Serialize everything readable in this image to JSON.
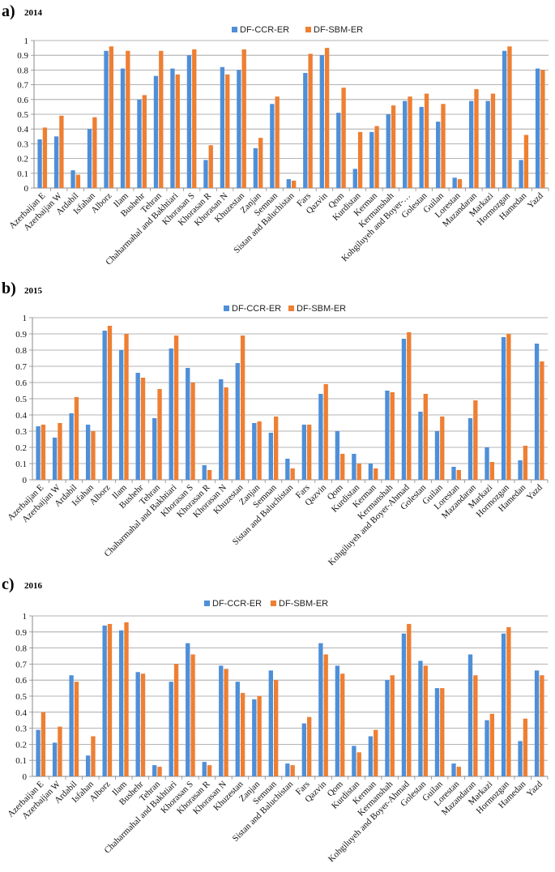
{
  "colors": {
    "ccr": "#4f8fd8",
    "sbm": "#ee7f33",
    "grid": "#9a9a9a",
    "axis": "#8a8a8a"
  },
  "chart_data": [
    {
      "type": "bar",
      "panel_letter": "a)",
      "title": "2014",
      "ylim": [
        0,
        1
      ],
      "yticks": [
        "0",
        "0.1",
        "0.2",
        "0.3",
        "0.4",
        "0.5",
        "0.6",
        "0.7",
        "0.8",
        "0.9",
        "1"
      ],
      "categories": [
        "Azerbaijan E",
        "Azerbaijan W",
        "Ardabil",
        "Isfahan",
        "Alborz",
        "Ilam",
        "Bushehr",
        "Tehran",
        "Chaharmahal and Bakhtiari",
        "Khorasan S",
        "Khorasan R",
        "Khorasan N",
        "Khuzestan",
        "Zanjan",
        "Semnan",
        "Sistan and Baluchistan",
        "Fars",
        "Qazvin",
        "Qom",
        "Kurdistan",
        "Kerman",
        "Kermanshah",
        "Kohgiluyeh and Boyer-…",
        "Golestan",
        "Guilan",
        "Lorestan",
        "Mazandaran",
        "Markazi",
        "Hormozgan",
        "Hamedan",
        "Yazd"
      ],
      "series": [
        {
          "name": "DF-CCR-ER",
          "values": [
            0.33,
            0.35,
            0.12,
            0.4,
            0.93,
            0.81,
            0.6,
            0.76,
            0.81,
            0.9,
            0.19,
            0.82,
            0.8,
            0.27,
            0.57,
            0.06,
            0.78,
            0.9,
            0.51,
            0.13,
            0.38,
            0.5,
            0.59,
            0.55,
            0.45,
            0.07,
            0.59,
            0.59,
            0.93,
            0.19,
            0.81
          ]
        },
        {
          "name": "DF-SBM-ER",
          "values": [
            0.41,
            0.49,
            0.09,
            0.48,
            0.96,
            0.93,
            0.63,
            0.93,
            0.77,
            0.94,
            0.29,
            0.77,
            0.94,
            0.34,
            0.62,
            0.05,
            0.91,
            0.95,
            0.68,
            0.38,
            0.42,
            0.56,
            0.62,
            0.64,
            0.57,
            0.06,
            0.67,
            0.64,
            0.96,
            0.36,
            0.8
          ]
        }
      ]
    },
    {
      "type": "bar",
      "panel_letter": "b)",
      "title": "2015",
      "ylim": [
        0,
        1
      ],
      "yticks": [
        "0",
        "0.1",
        "0.2",
        "0.3",
        "0.4",
        "0.5",
        "0.6",
        "0.7",
        "0.8",
        "0.9",
        "1"
      ],
      "categories": [
        "Azerbaijan E",
        "Azerbaijan W",
        "Ardabil",
        "Isfahan",
        "Alborz",
        "Ilam",
        "Bushehr",
        "Tehran",
        "Chaharmahal and Bakhtiari",
        "Khorasan S",
        "Khorasan R",
        "Khorasan N",
        "Khuzestan",
        "Zanjan",
        "Semnan",
        "Sistan and Baluchistan",
        "Fars",
        "Qazvin",
        "Qom",
        "Kurdistan",
        "Kerman",
        "Kermanshah",
        "Kohgiluyeh and Boyer-Ahmad",
        "Golestan",
        "Guilan",
        "Lorestan",
        "Mazandaran",
        "Markazi",
        "Hormozgan",
        "Hamedan",
        "Yazd"
      ],
      "series": [
        {
          "name": "DF-CCR-ER",
          "values": [
            0.33,
            0.26,
            0.41,
            0.34,
            0.92,
            0.8,
            0.66,
            0.38,
            0.81,
            0.69,
            0.09,
            0.62,
            0.72,
            0.35,
            0.29,
            0.13,
            0.34,
            0.53,
            0.3,
            0.16,
            0.1,
            0.55,
            0.87,
            0.42,
            0.3,
            0.08,
            0.38,
            0.2,
            0.88,
            0.12,
            0.84
          ]
        },
        {
          "name": "DF-SBM-ER",
          "values": [
            0.34,
            0.35,
            0.51,
            0.3,
            0.95,
            0.9,
            0.63,
            0.56,
            0.89,
            0.6,
            0.06,
            0.57,
            0.89,
            0.36,
            0.39,
            0.07,
            0.34,
            0.59,
            0.16,
            0.1,
            0.07,
            0.54,
            0.91,
            0.53,
            0.39,
            0.06,
            0.49,
            0.11,
            0.9,
            0.21,
            0.73
          ]
        }
      ]
    },
    {
      "type": "bar",
      "panel_letter": "c)",
      "title": "2016",
      "ylim": [
        0,
        1
      ],
      "yticks": [
        "0",
        "0.1",
        "0.2",
        "0.3",
        "0.4",
        "0.5",
        "0.6",
        "0.7",
        "0.8",
        "0.9",
        "1"
      ],
      "categories": [
        "Azerbaijan E",
        "Azerbaijan W",
        "Ardabil",
        "Isfahan",
        "Alborz",
        "Ilam",
        "Bushehr",
        "Tehran",
        "Chaharmahal and Bakhtiari",
        "Khorasan S",
        "Khorasan R",
        "Khorasan N",
        "Khuzestan",
        "Zanjan",
        "Semnan",
        "Sistan and Baluchistan",
        "Fars",
        "Qazvin",
        "Qom",
        "Kurdistan",
        "Kerman",
        "Kermanshah",
        "Kohgiluyeh and Boyer-Ahmad",
        "Golestan",
        "Guilan",
        "Lorestan",
        "Mazandaran",
        "Markazi",
        "Hormozgan",
        "Hamedan",
        "Yazd"
      ],
      "series": [
        {
          "name": "DF-CCR-ER",
          "values": [
            0.29,
            0.21,
            0.63,
            0.13,
            0.94,
            0.91,
            0.65,
            0.07,
            0.59,
            0.83,
            0.09,
            0.69,
            0.59,
            0.48,
            0.66,
            0.08,
            0.33,
            0.83,
            0.69,
            0.19,
            0.25,
            0.6,
            0.89,
            0.72,
            0.55,
            0.08,
            0.76,
            0.35,
            0.89,
            0.22,
            0.66
          ]
        },
        {
          "name": "DF-SBM-ER",
          "values": [
            0.4,
            0.31,
            0.59,
            0.25,
            0.95,
            0.96,
            0.64,
            0.06,
            0.7,
            0.76,
            0.07,
            0.67,
            0.52,
            0.5,
            0.6,
            0.07,
            0.37,
            0.76,
            0.64,
            0.15,
            0.29,
            0.63,
            0.95,
            0.69,
            0.55,
            0.06,
            0.63,
            0.39,
            0.93,
            0.36,
            0.63
          ]
        }
      ]
    }
  ]
}
